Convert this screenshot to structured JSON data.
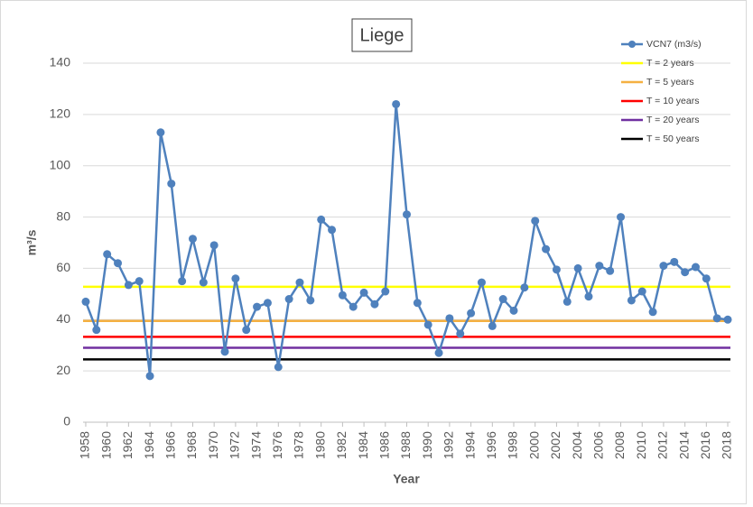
{
  "chart_data": {
    "type": "line",
    "title": "Liege",
    "x_label": "Year",
    "y_label": "m³/s",
    "x": [
      1958,
      1959,
      1960,
      1961,
      1962,
      1963,
      1964,
      1965,
      1966,
      1967,
      1968,
      1969,
      1970,
      1971,
      1972,
      1973,
      1974,
      1975,
      1976,
      1977,
      1978,
      1979,
      1980,
      1981,
      1982,
      1983,
      1984,
      1985,
      1986,
      1987,
      1988,
      1989,
      1990,
      1991,
      1992,
      1993,
      1994,
      1995,
      1996,
      1997,
      1998,
      1999,
      2000,
      2001,
      2002,
      2003,
      2004,
      2005,
      2006,
      2007,
      2008,
      2009,
      2010,
      2011,
      2012,
      2013,
      2014,
      2015,
      2016,
      2017,
      2018
    ],
    "series": [
      {
        "name": "VCN7 (m3/s)",
        "color": "#4f81bd",
        "values": [
          47,
          36,
          65.5,
          62,
          53.5,
          55,
          18,
          113,
          93,
          55,
          71.5,
          54.5,
          69,
          27.5,
          56,
          36,
          45,
          46.5,
          21.5,
          48,
          54.5,
          47.5,
          79,
          75,
          49.5,
          45,
          50.5,
          46,
          51,
          124,
          81,
          46.5,
          38,
          27,
          40.5,
          34.5,
          42.5,
          54.5,
          37.5,
          48,
          43.5,
          52.5,
          78.5,
          67.5,
          59.5,
          47,
          60,
          49,
          61,
          59,
          80,
          47.5,
          51,
          43,
          61,
          62.5,
          58.5,
          60.5,
          56,
          40.5,
          40
        ]
      }
    ],
    "reference_lines": [
      {
        "name": "T = 2 years",
        "color": "#ffff00",
        "value": 52.8
      },
      {
        "name": "T = 5 years",
        "color": "#f5b041",
        "value": 39.5
      },
      {
        "name": "T = 10 years",
        "color": "#ff0000",
        "value": 33.3
      },
      {
        "name": "T = 20 years",
        "color": "#7030a0",
        "value": 29
      },
      {
        "name": "T = 50 years",
        "color": "#000000",
        "value": 24.5
      }
    ],
    "xlim": [
      1957.75,
      2018.25
    ],
    "xticks": [
      1958,
      1960,
      1962,
      1964,
      1966,
      1968,
      1970,
      1972,
      1974,
      1976,
      1978,
      1980,
      1982,
      1984,
      1986,
      1988,
      1990,
      1992,
      1994,
      1996,
      1998,
      2000,
      2002,
      2004,
      2006,
      2008,
      2010,
      2012,
      2014,
      2016,
      2018
    ],
    "ylim": [
      0,
      140
    ],
    "yticks": [
      0,
      20,
      40,
      60,
      80,
      100,
      120,
      140
    ],
    "grid": true,
    "legend": "top-right"
  }
}
